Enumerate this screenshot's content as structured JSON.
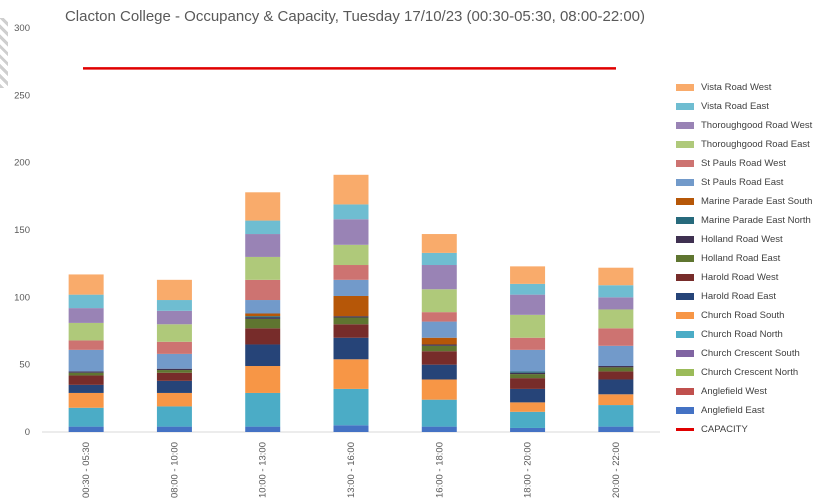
{
  "chart_data": {
    "type": "bar",
    "stacked": true,
    "title": "Clacton College - Occupancy & Capacity, Tuesday 17/10/23 (00:30-05:30, 08:00-22:00)",
    "xlabel": "",
    "ylabel": "",
    "ylim": [
      0,
      300
    ],
    "yticks": [
      0,
      50,
      100,
      150,
      200,
      250,
      300
    ],
    "grid": false,
    "legend_position": "right",
    "categories": [
      "00:30 - 05:30",
      "08:00 - 10:00",
      "10:00 - 13:00",
      "13:00 - 16:00",
      "16:00 - 18:00",
      "18:00 - 20:00",
      "20:00 - 22:00"
    ],
    "series": [
      {
        "name": "Anglefield East",
        "color": "#4472C4",
        "values": [
          4,
          4,
          4,
          5,
          4,
          3,
          4
        ]
      },
      {
        "name": "Anglefield West",
        "color": "#C0504D",
        "values": [
          0,
          0,
          0,
          0,
          0,
          0,
          0
        ]
      },
      {
        "name": "Church Crescent North",
        "color": "#9BBB59",
        "values": [
          0,
          0,
          0,
          0,
          0,
          0,
          0
        ]
      },
      {
        "name": "Church Crescent South",
        "color": "#8064A2",
        "values": [
          0,
          0,
          0,
          0,
          0,
          0,
          0
        ]
      },
      {
        "name": "Church Road North",
        "color": "#4BACC6",
        "values": [
          14,
          15,
          25,
          27,
          20,
          12,
          16
        ]
      },
      {
        "name": "Church Road South",
        "color": "#F79646",
        "values": [
          11,
          10,
          20,
          22,
          15,
          7,
          8
        ]
      },
      {
        "name": "Harold Road East",
        "color": "#264478",
        "values": [
          6,
          9,
          16,
          16,
          11,
          10,
          11
        ]
      },
      {
        "name": "Harold Road West",
        "color": "#772C2A",
        "values": [
          7,
          6,
          12,
          10,
          10,
          8,
          6
        ]
      },
      {
        "name": "Holland Road East",
        "color": "#5F7530",
        "values": [
          2,
          2,
          7,
          5,
          4,
          3,
          3
        ]
      },
      {
        "name": "Holland Road West",
        "color": "#3F3151",
        "values": [
          1,
          1,
          1,
          1,
          1,
          1,
          1
        ]
      },
      {
        "name": "Marine Parade East North",
        "color": "#276A7C",
        "values": [
          0,
          0,
          1,
          0,
          0,
          1,
          0
        ]
      },
      {
        "name": "Marine Parade East South",
        "color": "#B65708",
        "values": [
          0,
          0,
          2,
          15,
          5,
          0,
          0
        ]
      },
      {
        "name": "St Pauls Road East",
        "color": "#729ACA",
        "values": [
          16,
          11,
          10,
          12,
          12,
          16,
          15
        ]
      },
      {
        "name": "St Pauls Road West",
        "color": "#CD7371",
        "values": [
          7,
          9,
          15,
          11,
          7,
          9,
          13
        ]
      },
      {
        "name": "Thoroughgood Road East",
        "color": "#AFC97A",
        "values": [
          13,
          13,
          17,
          15,
          17,
          17,
          14
        ]
      },
      {
        "name": "Thoroughgood Road West",
        "color": "#9983B5",
        "values": [
          11,
          10,
          17,
          19,
          18,
          15,
          9
        ]
      },
      {
        "name": "Vista Road East",
        "color": "#6FBDD1",
        "values": [
          10,
          8,
          10,
          11,
          9,
          8,
          9
        ]
      },
      {
        "name": "Vista Road West",
        "color": "#F9AB6B",
        "values": [
          15,
          15,
          21,
          22,
          14,
          13,
          13
        ]
      }
    ],
    "capacity": {
      "name": "CAPACITY",
      "color": "#E00000",
      "value": 270
    }
  }
}
